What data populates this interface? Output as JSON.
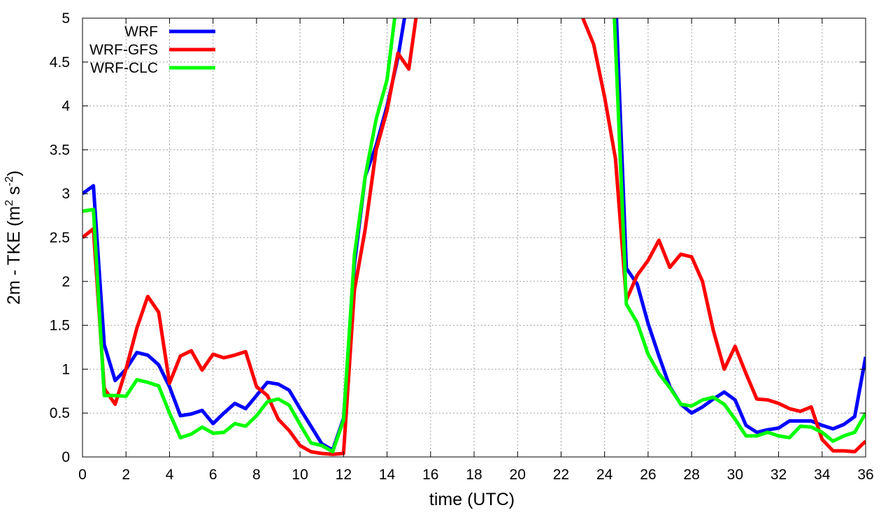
{
  "chart_data": {
    "type": "line",
    "xlabel": "time (UTC)",
    "ylabel_main": "2m - TKE (m",
    "ylabel_sup1": "2",
    "ylabel_mid": " s",
    "ylabel_sup2": "-2",
    "ylabel_end": ")",
    "xlim": [
      0,
      36
    ],
    "ylim": [
      0,
      5
    ],
    "grid": true,
    "legend_position": "top-left",
    "xticks": [
      0,
      2,
      4,
      6,
      8,
      10,
      12,
      14,
      16,
      18,
      20,
      22,
      24,
      26,
      28,
      30,
      32,
      34,
      36
    ],
    "yticks": [
      0,
      0.5,
      1,
      1.5,
      2,
      2.5,
      3,
      3.5,
      4,
      4.5,
      5
    ],
    "xtick_labels": [
      "0",
      "2",
      "4",
      "6",
      "8",
      "10",
      "12",
      "14",
      "16",
      "18",
      "20",
      "22",
      "24",
      "26",
      "28",
      "30",
      "32",
      "34",
      "36"
    ],
    "ytick_labels": [
      "0",
      "0.5",
      "1",
      "1.5",
      "2",
      "2.5",
      "3",
      "3.5",
      "4",
      "4.5",
      "5"
    ],
    "series": [
      {
        "name": "WRF",
        "color": "#0000ff",
        "points": [
          [
            0,
            3.0
          ],
          [
            0.5,
            3.09
          ],
          [
            1,
            1.28
          ],
          [
            1.5,
            0.87
          ],
          [
            2,
            1.0
          ],
          [
            2.5,
            1.19
          ],
          [
            3,
            1.16
          ],
          [
            3.5,
            1.05
          ],
          [
            4,
            0.8
          ],
          [
            4.5,
            0.47
          ],
          [
            5,
            0.49
          ],
          [
            5.5,
            0.53
          ],
          [
            6,
            0.38
          ],
          [
            6.5,
            0.5
          ],
          [
            7,
            0.61
          ],
          [
            7.5,
            0.55
          ],
          [
            8,
            0.7
          ],
          [
            8.5,
            0.85
          ],
          [
            9,
            0.83
          ],
          [
            9.5,
            0.76
          ],
          [
            10,
            0.55
          ],
          [
            10.5,
            0.35
          ],
          [
            11,
            0.15
          ],
          [
            11.5,
            0.08
          ],
          [
            12,
            0.44
          ],
          [
            12.5,
            2.2
          ],
          [
            13,
            3.2
          ],
          [
            13.5,
            3.55
          ],
          [
            14,
            4.0
          ],
          [
            14.5,
            4.55
          ],
          [
            15,
            5.3
          ],
          [
            24.5,
            5.3
          ],
          [
            25,
            2.15
          ],
          [
            25.5,
            1.97
          ],
          [
            26,
            1.52
          ],
          [
            26.5,
            1.15
          ],
          [
            27,
            0.8
          ],
          [
            27.5,
            0.6
          ],
          [
            28,
            0.5
          ],
          [
            28.5,
            0.57
          ],
          [
            29,
            0.66
          ],
          [
            29.5,
            0.74
          ],
          [
            30,
            0.65
          ],
          [
            30.5,
            0.36
          ],
          [
            31,
            0.28
          ],
          [
            31.5,
            0.31
          ],
          [
            32,
            0.33
          ],
          [
            32.5,
            0.41
          ],
          [
            33,
            0.41
          ],
          [
            33.5,
            0.41
          ],
          [
            34,
            0.36
          ],
          [
            34.5,
            0.32
          ],
          [
            35,
            0.37
          ],
          [
            35.5,
            0.46
          ],
          [
            36,
            1.14
          ]
        ]
      },
      {
        "name": "WRF-GFS",
        "color": "#ff0000",
        "points": [
          [
            0,
            2.5
          ],
          [
            0.5,
            2.6
          ],
          [
            1,
            0.78
          ],
          [
            1.5,
            0.6
          ],
          [
            2,
            1.0
          ],
          [
            2.5,
            1.47
          ],
          [
            3,
            1.83
          ],
          [
            3.5,
            1.65
          ],
          [
            4,
            0.84
          ],
          [
            4.5,
            1.15
          ],
          [
            5,
            1.21
          ],
          [
            5.5,
            0.99
          ],
          [
            6,
            1.17
          ],
          [
            6.5,
            1.13
          ],
          [
            7,
            1.16
          ],
          [
            7.5,
            1.2
          ],
          [
            8,
            0.8
          ],
          [
            8.5,
            0.7
          ],
          [
            9,
            0.43
          ],
          [
            9.5,
            0.3
          ],
          [
            10,
            0.13
          ],
          [
            10.5,
            0.06
          ],
          [
            11,
            0.04
          ],
          [
            11.5,
            0.03
          ],
          [
            12,
            0.04
          ],
          [
            12.5,
            1.9
          ],
          [
            13,
            2.6
          ],
          [
            13.5,
            3.5
          ],
          [
            14,
            3.95
          ],
          [
            14.5,
            4.6
          ],
          [
            15,
            4.42
          ],
          [
            15.5,
            5.3
          ],
          [
            23,
            5.0
          ],
          [
            23.5,
            4.7
          ],
          [
            24,
            4.1
          ],
          [
            24.5,
            3.4
          ],
          [
            25,
            1.79
          ],
          [
            25.5,
            2.07
          ],
          [
            26,
            2.24
          ],
          [
            26.5,
            2.47
          ],
          [
            27,
            2.16
          ],
          [
            27.5,
            2.31
          ],
          [
            28,
            2.28
          ],
          [
            28.5,
            2.0
          ],
          [
            29,
            1.44
          ],
          [
            29.5,
            1.0
          ],
          [
            30,
            1.26
          ],
          [
            30.5,
            0.95
          ],
          [
            31,
            0.66
          ],
          [
            31.5,
            0.65
          ],
          [
            32,
            0.61
          ],
          [
            32.5,
            0.55
          ],
          [
            33,
            0.52
          ],
          [
            33.5,
            0.57
          ],
          [
            34,
            0.2
          ],
          [
            34.5,
            0.07
          ],
          [
            35,
            0.07
          ],
          [
            35.5,
            0.06
          ],
          [
            36,
            0.18
          ]
        ]
      },
      {
        "name": "WRF-CLC",
        "color": "#00ff00",
        "points": [
          [
            0,
            2.8
          ],
          [
            0.5,
            2.82
          ],
          [
            1,
            0.7
          ],
          [
            1.5,
            0.7
          ],
          [
            2,
            0.69
          ],
          [
            2.5,
            0.88
          ],
          [
            3,
            0.85
          ],
          [
            3.5,
            0.81
          ],
          [
            4,
            0.5
          ],
          [
            4.5,
            0.22
          ],
          [
            5,
            0.26
          ],
          [
            5.5,
            0.34
          ],
          [
            6,
            0.27
          ],
          [
            6.5,
            0.28
          ],
          [
            7,
            0.38
          ],
          [
            7.5,
            0.35
          ],
          [
            8,
            0.47
          ],
          [
            8.5,
            0.63
          ],
          [
            9,
            0.66
          ],
          [
            9.5,
            0.59
          ],
          [
            10,
            0.37
          ],
          [
            10.5,
            0.16
          ],
          [
            11,
            0.13
          ],
          [
            11.5,
            0.06
          ],
          [
            12,
            0.42
          ],
          [
            12.5,
            2.3
          ],
          [
            13,
            3.2
          ],
          [
            13.5,
            3.85
          ],
          [
            14,
            4.3
          ],
          [
            14.5,
            5.3
          ],
          [
            24.4,
            5.3
          ],
          [
            25,
            1.74
          ],
          [
            25.5,
            1.53
          ],
          [
            26,
            1.17
          ],
          [
            26.5,
            0.95
          ],
          [
            27,
            0.79
          ],
          [
            27.5,
            0.6
          ],
          [
            28,
            0.58
          ],
          [
            28.5,
            0.65
          ],
          [
            29,
            0.68
          ],
          [
            29.5,
            0.6
          ],
          [
            30,
            0.43
          ],
          [
            30.5,
            0.24
          ],
          [
            31,
            0.24
          ],
          [
            31.5,
            0.28
          ],
          [
            32,
            0.24
          ],
          [
            32.5,
            0.22
          ],
          [
            33,
            0.35
          ],
          [
            33.5,
            0.34
          ],
          [
            34,
            0.28
          ],
          [
            34.5,
            0.18
          ],
          [
            35,
            0.24
          ],
          [
            35.5,
            0.28
          ],
          [
            36,
            0.5
          ]
        ]
      }
    ]
  }
}
